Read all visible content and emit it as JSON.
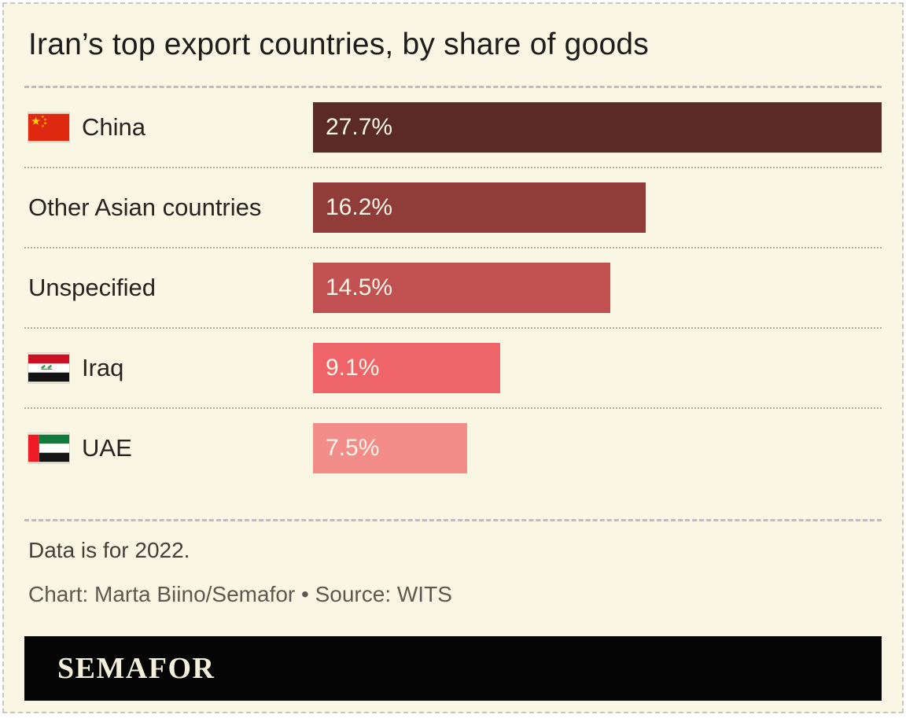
{
  "page": {
    "background_color": "#f9f6e3",
    "border_color": "#c6c6c6"
  },
  "header": {
    "title": "Iran’s top export countries, by share of goods"
  },
  "chart_data": {
    "type": "bar",
    "orientation": "horizontal",
    "title": "Iran’s top export countries, by share of goods",
    "categories": [
      "China",
      "Other Asian countries",
      "Unspecified",
      "Iraq",
      "UAE"
    ],
    "values": [
      27.7,
      16.2,
      14.5,
      9.1,
      7.5
    ],
    "xmax": 27.7,
    "grid": false,
    "legend": false,
    "rows": [
      {
        "label": "China",
        "flag": "china-flag",
        "value": 27.7,
        "value_label": "27.7%",
        "color": "#5a2a27"
      },
      {
        "label": "Other Asian countries",
        "flag": null,
        "value": 16.2,
        "value_label": "16.2%",
        "color": "#903c39"
      },
      {
        "label": "Unspecified",
        "flag": null,
        "value": 14.5,
        "value_label": "14.5%",
        "color": "#c25252"
      },
      {
        "label": "Iraq",
        "flag": "iraq-flag",
        "value": 9.1,
        "value_label": "9.1%",
        "color": "#ef6468"
      },
      {
        "label": "UAE",
        "flag": "uae-flag",
        "value": 7.5,
        "value_label": "7.5%",
        "color": "#f28d8a"
      }
    ],
    "notes": "Data is for 2022.",
    "credit": "Chart: Marta Biino/Semafor • Source: WITS"
  },
  "footer": {
    "note": "Data is for 2022.",
    "credit": "Chart: Marta Biino/Semafor • Source: WITS",
    "logo_text": "SEMAFOR"
  }
}
